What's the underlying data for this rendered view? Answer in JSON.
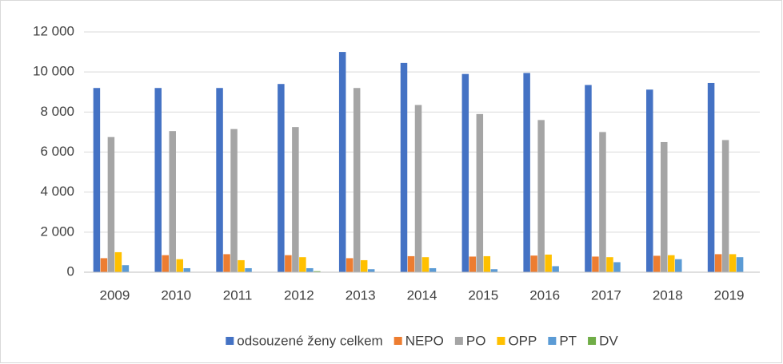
{
  "chart_data": {
    "type": "bar",
    "categories": [
      "2009",
      "2010",
      "2011",
      "2012",
      "2013",
      "2014",
      "2015",
      "2016",
      "2017",
      "2018",
      "2019"
    ],
    "series": [
      {
        "name": "odsouzené ženy celkem",
        "color": "#4472c4",
        "values": [
          9200,
          9200,
          9200,
          9400,
          11000,
          10450,
          9900,
          9950,
          9350,
          9120,
          9450
        ]
      },
      {
        "name": "NEPO",
        "color": "#ed7d31",
        "values": [
          700,
          850,
          900,
          850,
          700,
          800,
          780,
          830,
          780,
          820,
          900
        ]
      },
      {
        "name": "PO",
        "color": "#a5a5a5",
        "values": [
          6750,
          7050,
          7150,
          7250,
          9200,
          8350,
          7900,
          7600,
          7000,
          6500,
          6600
        ]
      },
      {
        "name": "OPP",
        "color": "#ffc000",
        "values": [
          1000,
          650,
          600,
          750,
          600,
          750,
          800,
          880,
          750,
          850,
          900
        ]
      },
      {
        "name": "PT",
        "color": "#5b9bd5",
        "values": [
          350,
          200,
          200,
          200,
          150,
          200,
          150,
          300,
          500,
          650,
          750
        ]
      },
      {
        "name": "DV",
        "color": "#70ad47",
        "values": [
          20,
          10,
          10,
          50,
          10,
          10,
          10,
          10,
          10,
          10,
          10
        ]
      }
    ],
    "ylim": [
      0,
      12000
    ],
    "yticks": [
      0,
      {
        "value": 2000,
        "label": "2 000"
      },
      {
        "value": 4000,
        "label": "4 000"
      },
      {
        "value": 6000,
        "label": "6 000"
      },
      {
        "value": 8000,
        "label": "8 000"
      },
      {
        "value": 10000,
        "label": "10 000"
      },
      {
        "value": 12000,
        "label": "12 000"
      }
    ],
    "grid": true,
    "legend": "bottom"
  }
}
